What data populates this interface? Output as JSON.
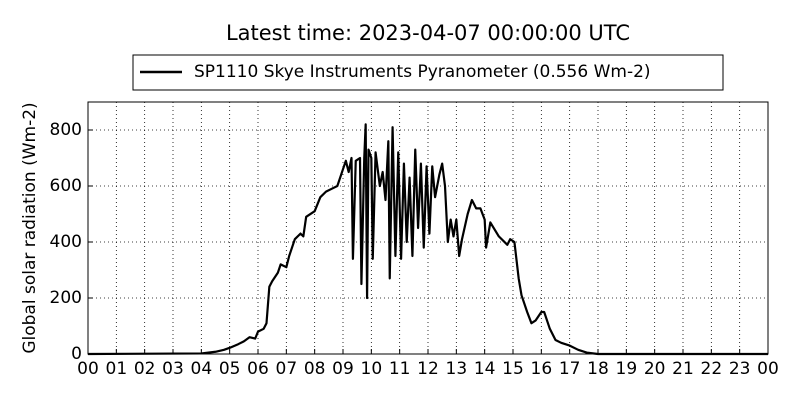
{
  "chart_data": {
    "type": "line",
    "title": "Latest time: 2023-04-07 00:00:00 UTC",
    "y_label": "Global solar radiation (Wm-2)",
    "series": [
      {
        "name": "SP1110 Skye Instruments Pyranometer (0.556 Wm-2)",
        "color": "#000000",
        "x": [
          0,
          4.0,
          4.5,
          4.8,
          5.0,
          5.3,
          5.5,
          5.7,
          5.9,
          6.0,
          6.2,
          6.3,
          6.4,
          6.5,
          6.7,
          6.8,
          7.0,
          7.1,
          7.3,
          7.5,
          7.6,
          7.7,
          8.0,
          8.2,
          8.4,
          8.6,
          8.8,
          9.0,
          9.1,
          9.2,
          9.3,
          9.35,
          9.45,
          9.6,
          9.65,
          9.75,
          9.8,
          9.85,
          9.9,
          10.0,
          10.05,
          10.15,
          10.3,
          10.4,
          10.5,
          10.6,
          10.65,
          10.75,
          10.85,
          10.95,
          11.05,
          11.15,
          11.25,
          11.35,
          11.45,
          11.55,
          11.65,
          11.75,
          11.85,
          11.95,
          12.05,
          12.15,
          12.25,
          12.4,
          12.5,
          12.6,
          12.7,
          12.8,
          12.9,
          13.0,
          13.1,
          13.2,
          13.4,
          13.55,
          13.7,
          13.85,
          14.0,
          14.05,
          14.2,
          14.5,
          14.8,
          14.9,
          15.05,
          15.2,
          15.3,
          15.5,
          15.65,
          15.8,
          16.0,
          16.1,
          16.3,
          16.5,
          16.7,
          17.0,
          17.3,
          17.6,
          18.0,
          24
        ],
        "values": [
          0,
          2,
          8,
          15,
          22,
          35,
          45,
          60,
          55,
          80,
          90,
          110,
          240,
          260,
          290,
          320,
          310,
          350,
          410,
          430,
          420,
          490,
          510,
          560,
          580,
          590,
          600,
          660,
          690,
          650,
          700,
          340,
          690,
          700,
          250,
          700,
          820,
          200,
          730,
          700,
          340,
          720,
          600,
          650,
          550,
          760,
          270,
          810,
          350,
          720,
          340,
          680,
          400,
          630,
          350,
          730,
          450,
          680,
          380,
          670,
          430,
          670,
          560,
          640,
          680,
          600,
          400,
          480,
          420,
          480,
          350,
          410,
          500,
          550,
          520,
          520,
          480,
          380,
          470,
          420,
          390,
          410,
          400,
          270,
          210,
          150,
          110,
          120,
          150,
          150,
          90,
          50,
          40,
          30,
          15,
          5,
          0,
          0
        ]
      }
    ],
    "xlim": [
      0,
      24
    ],
    "xticks": [
      {
        "value": 0,
        "label": "00"
      },
      {
        "value": 1,
        "label": "01"
      },
      {
        "value": 2,
        "label": "02"
      },
      {
        "value": 3,
        "label": "03"
      },
      {
        "value": 4,
        "label": "04"
      },
      {
        "value": 5,
        "label": "05"
      },
      {
        "value": 6,
        "label": "06"
      },
      {
        "value": 7,
        "label": "07"
      },
      {
        "value": 8,
        "label": "08"
      },
      {
        "value": 9,
        "label": "09"
      },
      10,
      11,
      12,
      13,
      14,
      15,
      16,
      17,
      18,
      19,
      20,
      21,
      22,
      23,
      {
        "value": 24,
        "label": "00"
      }
    ],
    "ylim": [
      0,
      900
    ],
    "yticks": [
      0,
      200,
      400,
      600,
      800
    ],
    "grid": true
  }
}
